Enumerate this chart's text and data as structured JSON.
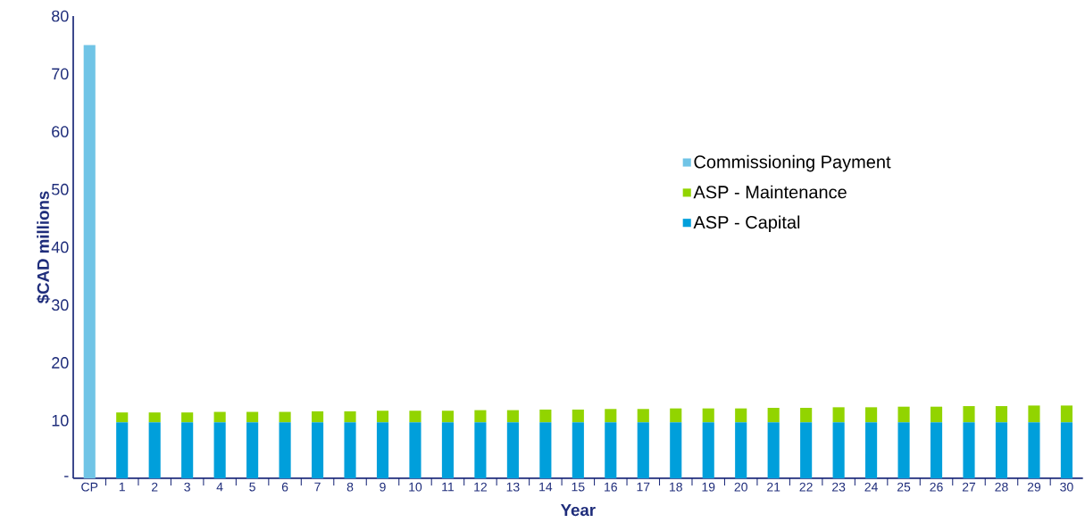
{
  "chart_data": {
    "type": "bar",
    "stacked": true,
    "xlabel": "Year",
    "ylabel": "$CAD millions",
    "categories": [
      "CP",
      "1",
      "2",
      "3",
      "4",
      "5",
      "6",
      "7",
      "8",
      "9",
      "10",
      "11",
      "12",
      "13",
      "14",
      "15",
      "16",
      "17",
      "18",
      "19",
      "20",
      "21",
      "22",
      "23",
      "24",
      "25",
      "26",
      "27",
      "28",
      "29",
      "30"
    ],
    "series": [
      {
        "name": "ASP - Capital",
        "color": "#009fdb",
        "values": [
          null,
          9.7,
          9.7,
          9.7,
          9.7,
          9.7,
          9.7,
          9.7,
          9.7,
          9.7,
          9.7,
          9.7,
          9.7,
          9.7,
          9.7,
          9.7,
          9.7,
          9.7,
          9.7,
          9.7,
          9.7,
          9.7,
          9.7,
          9.7,
          9.7,
          9.7,
          9.7,
          9.7,
          9.7,
          9.7,
          9.7
        ]
      },
      {
        "name": "ASP - Maintenance",
        "color": "#92d400",
        "values": [
          null,
          1.7,
          1.7,
          1.7,
          1.8,
          1.8,
          1.8,
          1.9,
          1.9,
          2.0,
          2.0,
          2.0,
          2.1,
          2.1,
          2.2,
          2.2,
          2.3,
          2.3,
          2.4,
          2.4,
          2.4,
          2.5,
          2.5,
          2.6,
          2.6,
          2.7,
          2.7,
          2.8,
          2.8,
          2.9,
          2.9
        ]
      },
      {
        "name": "Commissioning Payment",
        "color": "#70c4e6",
        "values": [
          75,
          null,
          null,
          null,
          null,
          null,
          null,
          null,
          null,
          null,
          null,
          null,
          null,
          null,
          null,
          null,
          null,
          null,
          null,
          null,
          null,
          null,
          null,
          null,
          null,
          null,
          null,
          null,
          null,
          null,
          null
        ]
      }
    ],
    "ylim": [
      0,
      80
    ],
    "yticks": [
      {
        "value": 0,
        "label": "-"
      },
      10,
      20,
      30,
      40,
      50,
      60,
      70,
      80
    ],
    "grid": false,
    "legend": "right"
  }
}
